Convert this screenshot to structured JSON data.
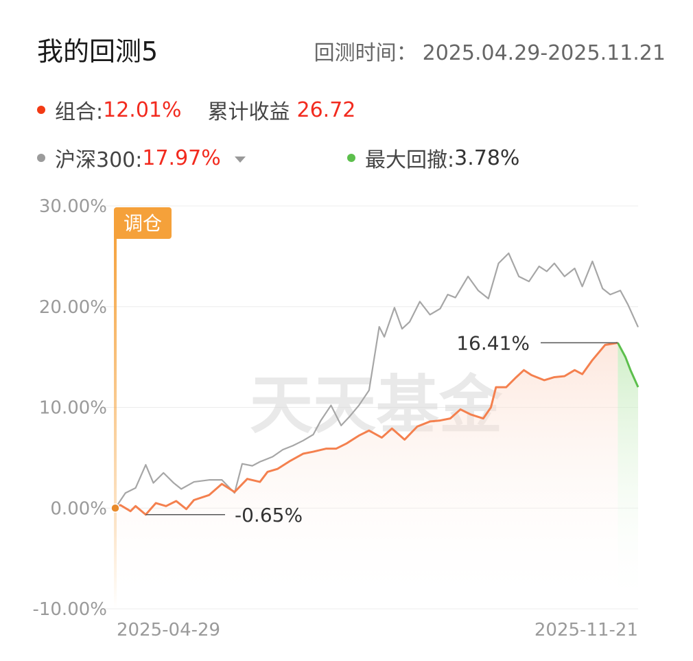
{
  "header": {
    "title": "我的回测5",
    "period_label": "回测时间：",
    "period_value": "2025.04.29-2025.11.21"
  },
  "legend": {
    "portfolio_label": "组合:",
    "portfolio_value": "12.01%",
    "cumulative_label": "累计收益",
    "cumulative_value": "26.72",
    "benchmark_label": "沪深300:",
    "benchmark_value": "17.97%",
    "drawdown_label": "最大回撤:",
    "drawdown_value": "3.78%"
  },
  "colors": {
    "portfolio": "#f4804e",
    "benchmark": "#a6a6a6",
    "drawdown": "#5cbf4c",
    "rebalance": "#f5a13a",
    "positive_text": "#f22a1e"
  },
  "watermark": "天天基金",
  "rebalance_tag": "调仓",
  "chart_data": {
    "type": "line",
    "x_start": "2025-04-29",
    "x_end": "2025-11-21",
    "ylim": [
      -10,
      30
    ],
    "y_ticks": [
      -10,
      0,
      10,
      20,
      30
    ],
    "y_tick_labels": [
      "-10.00%",
      "0.00%",
      "10.00%",
      "20.00%",
      "30.00%"
    ],
    "x_tick_labels": [
      "2025-04-29",
      "2025-11-21"
    ],
    "grid": true,
    "series": [
      {
        "name": "组合",
        "color": "#f4804e",
        "x": [
          "2025-04-29",
          "2025-05-01",
          "2025-05-05",
          "2025-05-07",
          "2025-05-11",
          "2025-05-15",
          "2025-05-19",
          "2025-05-23",
          "2025-05-27",
          "2025-05-30",
          "2025-06-05",
          "2025-06-10",
          "2025-06-15",
          "2025-06-20",
          "2025-06-25",
          "2025-06-28",
          "2025-07-02",
          "2025-07-07",
          "2025-07-12",
          "2025-07-16",
          "2025-07-21",
          "2025-07-25",
          "2025-07-29",
          "2025-08-03",
          "2025-08-07",
          "2025-08-12",
          "2025-08-16",
          "2025-08-21",
          "2025-08-26",
          "2025-08-31",
          "2025-09-04",
          "2025-09-08",
          "2025-09-12",
          "2025-09-16",
          "2025-09-21",
          "2025-09-24",
          "2025-09-26",
          "2025-09-30",
          "2025-10-04",
          "2025-10-07",
          "2025-10-10",
          "2025-10-15",
          "2025-10-19",
          "2025-10-23",
          "2025-10-27",
          "2025-10-30",
          "2025-11-03",
          "2025-11-08",
          "2025-11-13",
          "2025-11-16",
          "2025-11-18",
          "2025-11-21"
        ],
        "y": [
          0.0,
          0.3,
          -0.3,
          0.2,
          -0.65,
          0.5,
          0.2,
          0.7,
          -0.1,
          0.8,
          1.3,
          2.4,
          1.6,
          2.9,
          2.6,
          3.6,
          3.9,
          4.7,
          5.4,
          5.6,
          5.9,
          5.9,
          6.4,
          7.2,
          7.7,
          7.0,
          7.9,
          6.8,
          8.1,
          8.6,
          8.7,
          8.9,
          9.8,
          9.3,
          8.9,
          10.0,
          12.0,
          12.0,
          13.0,
          13.7,
          13.2,
          12.7,
          13.0,
          13.1,
          13.7,
          13.3,
          14.7,
          16.2,
          16.41,
          15.0,
          13.7,
          12.01
        ]
      },
      {
        "name": "沪深300",
        "color": "#a6a6a6",
        "x": [
          "2025-04-29",
          "2025-05-03",
          "2025-05-07",
          "2025-05-11",
          "2025-05-14",
          "2025-05-18",
          "2025-05-22",
          "2025-05-25",
          "2025-05-30",
          "2025-06-05",
          "2025-06-10",
          "2025-06-15",
          "2025-06-18",
          "2025-06-22",
          "2025-06-25",
          "2025-06-30",
          "2025-07-04",
          "2025-07-08",
          "2025-07-12",
          "2025-07-16",
          "2025-07-19",
          "2025-07-23",
          "2025-07-27",
          "2025-07-30",
          "2025-08-03",
          "2025-08-07",
          "2025-08-11",
          "2025-08-13",
          "2025-08-17",
          "2025-08-20",
          "2025-08-23",
          "2025-08-27",
          "2025-08-31",
          "2025-09-04",
          "2025-09-07",
          "2025-09-10",
          "2025-09-15",
          "2025-09-19",
          "2025-09-23",
          "2025-09-27",
          "2025-10-01",
          "2025-10-05",
          "2025-10-09",
          "2025-10-13",
          "2025-10-16",
          "2025-10-19",
          "2025-10-23",
          "2025-10-27",
          "2025-10-30",
          "2025-11-03",
          "2025-11-07",
          "2025-11-10",
          "2025-11-14",
          "2025-11-17",
          "2025-11-21"
        ],
        "y": [
          0.0,
          1.5,
          2.0,
          4.3,
          2.5,
          3.5,
          2.5,
          1.9,
          2.6,
          2.8,
          2.8,
          1.5,
          4.4,
          4.2,
          4.6,
          5.1,
          5.8,
          6.2,
          6.7,
          7.3,
          8.7,
          10.2,
          8.2,
          9.0,
          10.2,
          11.7,
          18.0,
          17.0,
          19.9,
          17.8,
          18.5,
          20.5,
          19.2,
          19.8,
          21.2,
          20.9,
          23.0,
          21.6,
          20.8,
          24.3,
          25.3,
          23.0,
          22.5,
          24.0,
          23.5,
          24.3,
          23.0,
          23.8,
          22.0,
          24.5,
          21.8,
          21.2,
          21.6,
          20.2,
          17.97
        ]
      }
    ],
    "annotations": [
      {
        "label": "16.41%",
        "x": "2025-11-13",
        "y": 16.41
      },
      {
        "label": "-0.65%",
        "x": "2025-05-11",
        "y": -0.65
      }
    ],
    "max_drawdown": {
      "start": "2025-11-13",
      "end": "2025-11-21",
      "value": "3.78%"
    },
    "rebalance_marker": {
      "x": "2025-04-29",
      "label": "调仓"
    }
  }
}
